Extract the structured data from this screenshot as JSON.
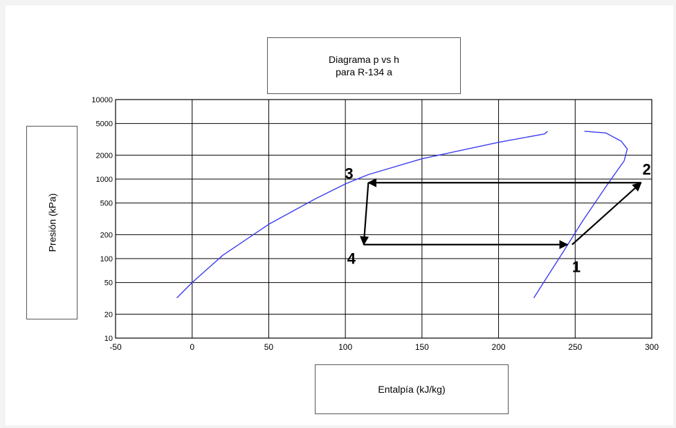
{
  "chart_data": {
    "type": "line",
    "title_lines": [
      "Diagrama p vs h",
      "para R-134 a"
    ],
    "xlabel": "Entalpía (kJ/kg)",
    "ylabel": "Presión (kPa)",
    "xlim": [
      -50,
      300
    ],
    "ylim": [
      10,
      10000
    ],
    "y_scale": "log",
    "grid": true,
    "x_ticks": [
      -50,
      0,
      50,
      100,
      150,
      200,
      250,
      300
    ],
    "y_ticks": [
      10,
      20,
      50,
      100,
      200,
      500,
      1000,
      2000,
      5000,
      10000
    ],
    "series": [
      {
        "role": "saturated-liquid-line",
        "color": "#3a3af0",
        "points": [
          [
            -10,
            32
          ],
          [
            0,
            50
          ],
          [
            20,
            110
          ],
          [
            50,
            270
          ],
          [
            80,
            560
          ],
          [
            100,
            870
          ],
          [
            115,
            1140
          ],
          [
            150,
            1800
          ],
          [
            200,
            2900
          ],
          [
            230,
            3700
          ],
          [
            232,
            4000
          ]
        ]
      },
      {
        "role": "saturated-vapor-line",
        "color": "#3a3af0",
        "points": [
          [
            256,
            4000
          ],
          [
            270,
            3800
          ],
          [
            280,
            3000
          ],
          [
            284,
            2400
          ],
          [
            282,
            1700
          ],
          [
            270,
            800
          ],
          [
            255,
            300
          ],
          [
            242,
            120
          ],
          [
            232,
            60
          ],
          [
            223,
            32
          ]
        ]
      },
      {
        "role": "refrigeration-cycle",
        "color": "#000000",
        "points": [
          [
            248,
            150
          ],
          [
            293,
            900
          ],
          [
            115,
            900
          ],
          [
            112,
            150
          ],
          [
            245,
            150
          ]
        ]
      }
    ],
    "state_points": [
      {
        "label": "1",
        "h": 248,
        "p": 150
      },
      {
        "label": "2",
        "h": 293,
        "p": 900
      },
      {
        "label": "3",
        "h": 115,
        "p": 900
      },
      {
        "label": "4",
        "h": 112,
        "p": 150
      }
    ]
  }
}
